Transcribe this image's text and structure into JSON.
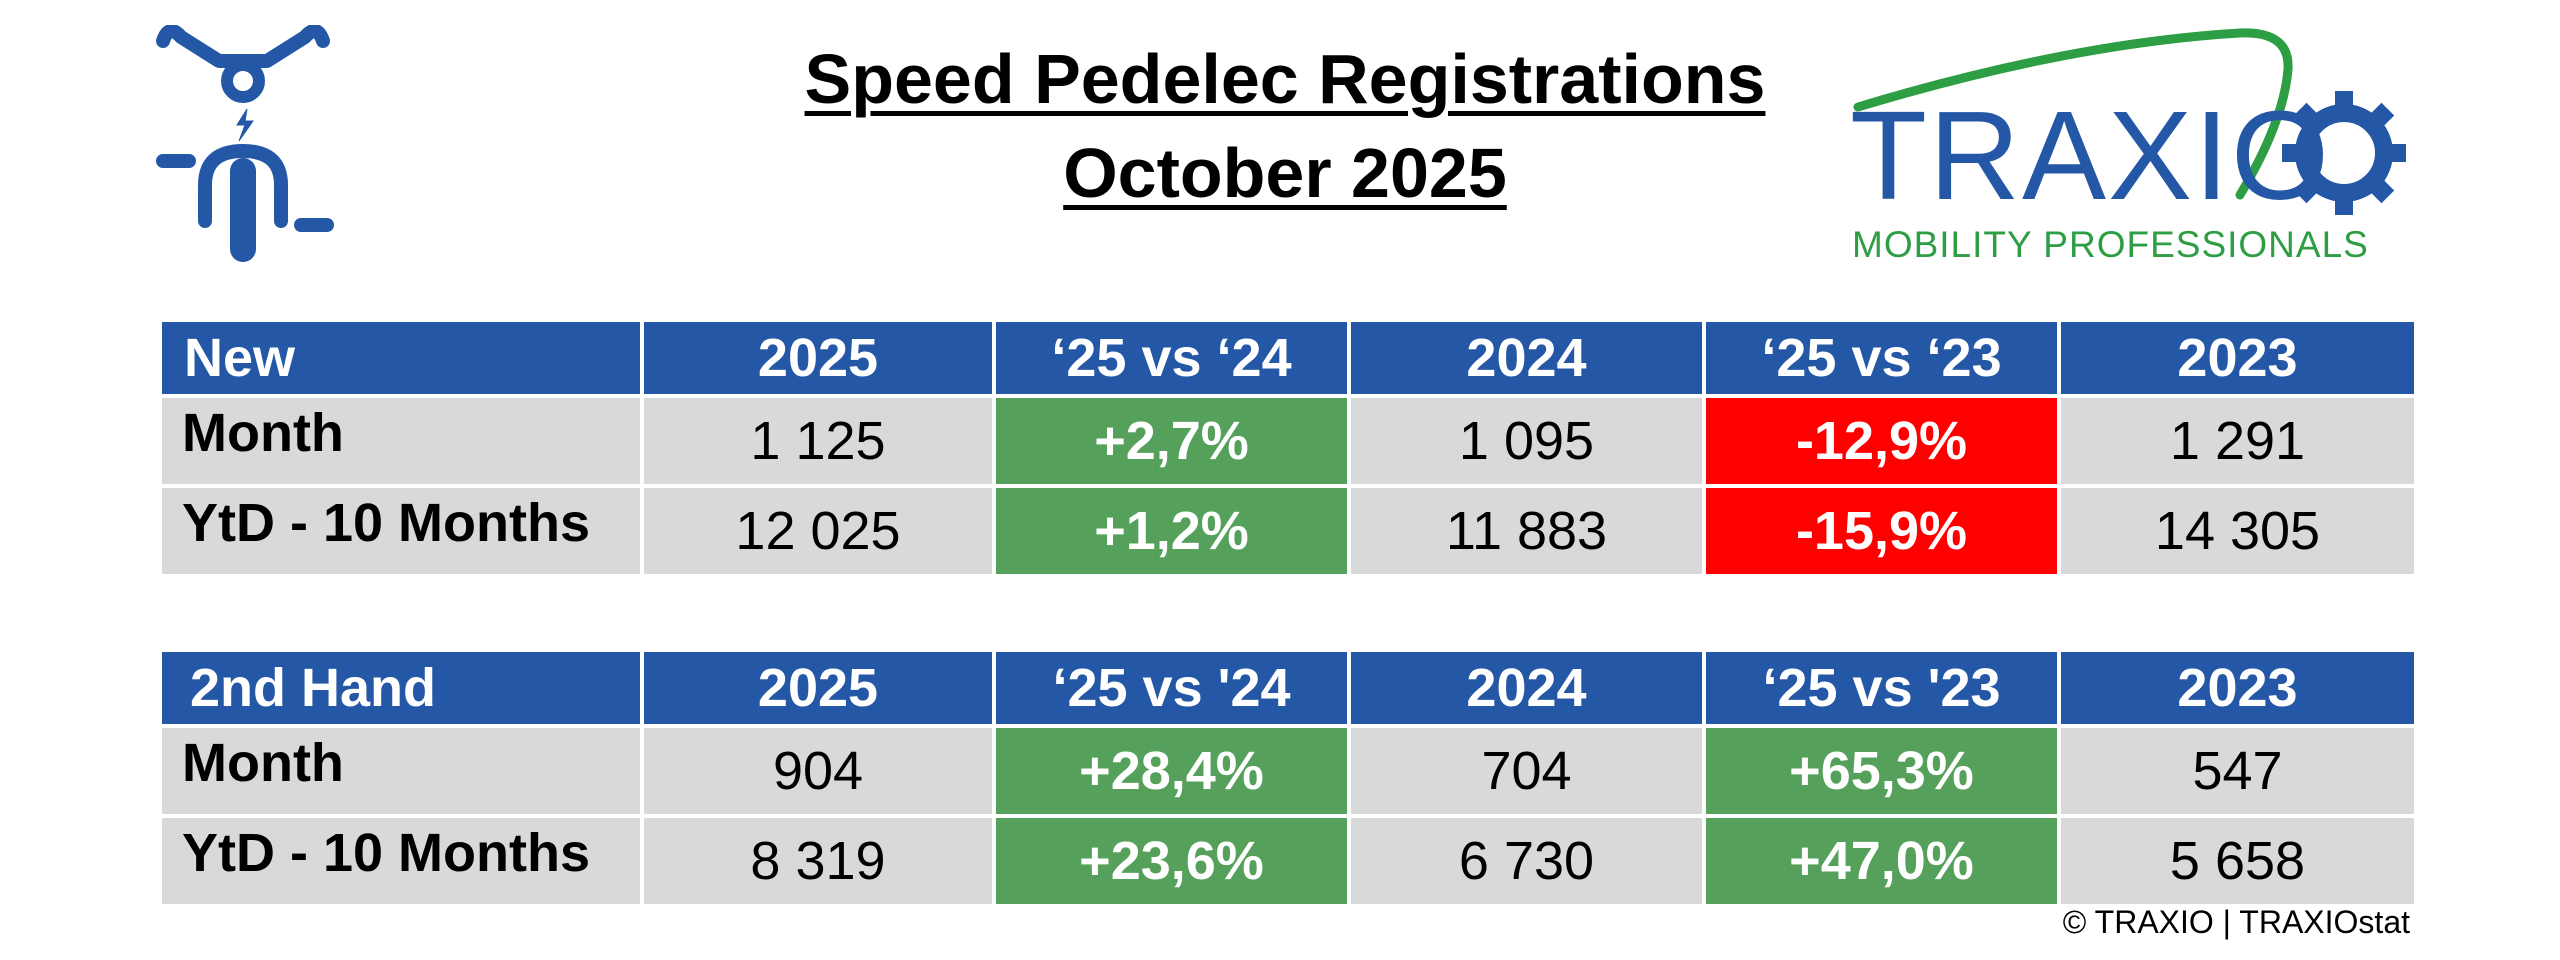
{
  "header": {
    "title_line1": "Speed Pedelec Registrations",
    "title_line2": "October 2025",
    "logo_icon": "speed-pedelec-rider-icon",
    "brand": {
      "name": "TRAXIO",
      "tagline": "MOBILITY PROFESSIONALS",
      "colors": {
        "blue": "#2457a6",
        "green": "#2e9e45"
      }
    }
  },
  "colors": {
    "header_blue": "#2457a6",
    "cell_grey": "#d9d9d9",
    "positive_green": "#55a05a",
    "negative_red": "#ff0000"
  },
  "tables": [
    {
      "id": "new",
      "headers": [
        "New",
        "2025",
        "‘25 vs ‘24",
        "2024",
        "‘25 vs ‘23",
        "2023"
      ],
      "rows": [
        {
          "label": "Month",
          "cells": [
            "1 125",
            "+2,7%",
            "1 095",
            "-12,9%",
            "1 291"
          ]
        },
        {
          "label": "YtD - 10 Months",
          "cells": [
            "12 025",
            "+1,2%",
            "11 883",
            "-15,9%",
            "14 305"
          ]
        }
      ]
    },
    {
      "id": "second-hand",
      "headers": [
        "2nd Hand",
        "2025",
        "‘25 vs '24",
        "2024",
        "‘25 vs '23",
        "2023"
      ],
      "rows": [
        {
          "label": "Month",
          "cells": [
            "904",
            "+28,4%",
            "704",
            "+65,3%",
            "547"
          ]
        },
        {
          "label": "YtD - 10 Months",
          "cells": [
            "8 319",
            "+23,6%",
            "6 730",
            "+47,0%",
            "5 658"
          ]
        }
      ]
    }
  ],
  "footer": {
    "copyright": "© TRAXIO | TRAXIOstat"
  }
}
